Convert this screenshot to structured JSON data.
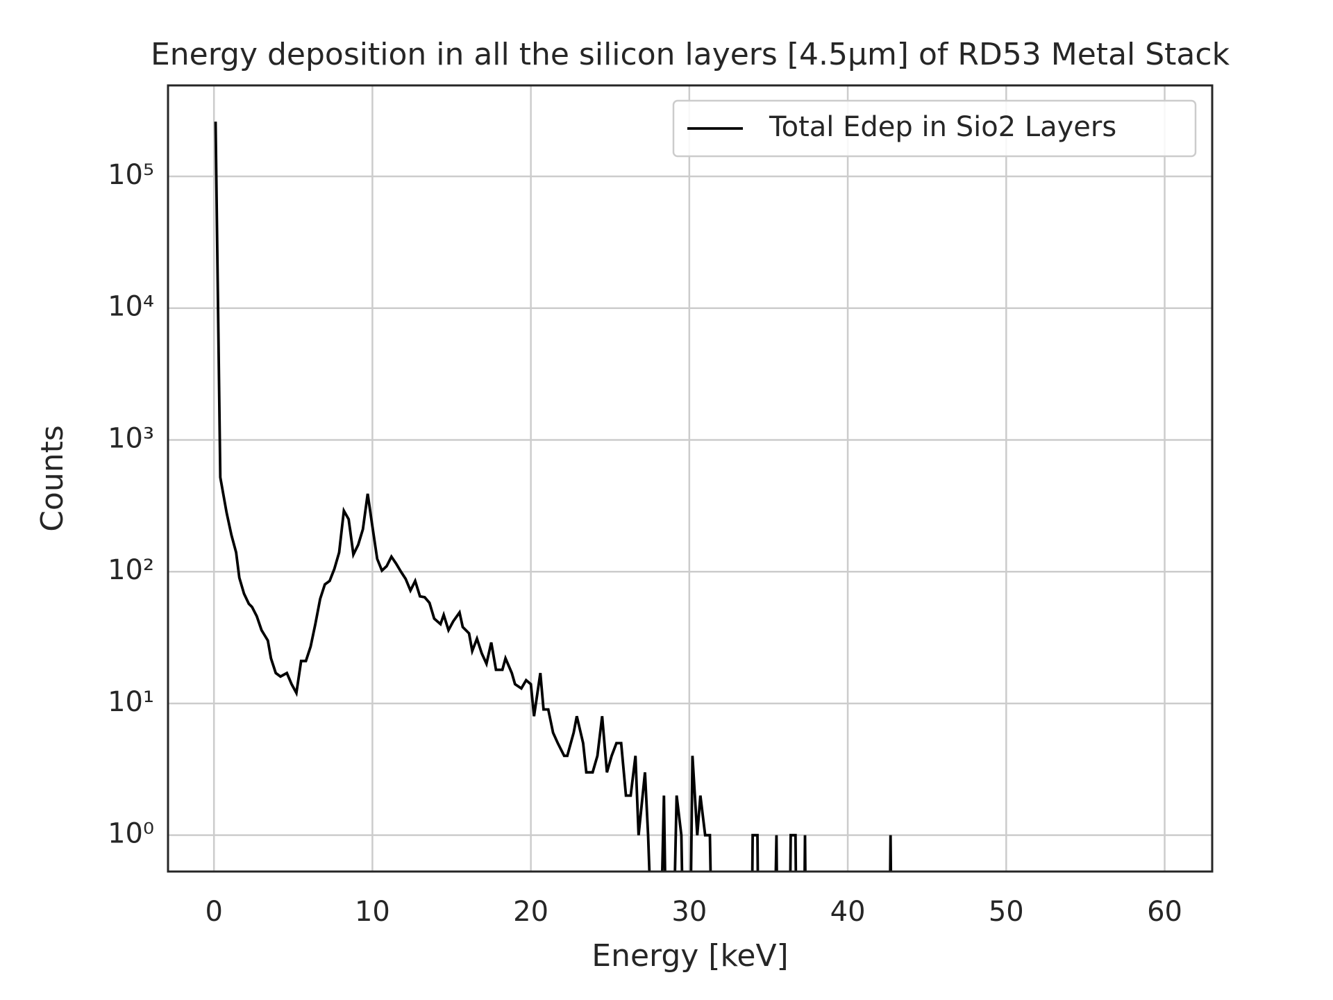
{
  "chart_data": {
    "type": "line",
    "title": "Energy deposition in all the silicon layers [4.5μm] of RD53 Metal Stack",
    "x_label": "Energy [keV]",
    "y_label": "Counts",
    "log_y": true,
    "grid": true,
    "legend": "upper right",
    "xlim": [
      -2.9,
      63
    ],
    "ylim": [
      0.53,
      490000
    ],
    "xticks": [
      0,
      10,
      20,
      30,
      40,
      50,
      60
    ],
    "yticks": [
      {
        "value": 1,
        "label": "10⁰"
      },
      {
        "value": 10,
        "label": "10¹"
      },
      {
        "value": 100,
        "label": "10²"
      },
      {
        "value": 1000,
        "label": "10³"
      },
      {
        "value": 10000,
        "label": "10⁴"
      },
      {
        "value": 100000,
        "label": "10⁵"
      }
    ],
    "x": [
      0.1,
      0.4,
      0.8,
      1.1,
      1.4,
      1.6,
      1.9,
      2.2,
      2.4,
      2.7,
      3.0,
      3.4,
      3.6,
      3.9,
      4.2,
      4.6,
      4.9,
      5.2,
      5.5,
      5.8,
      6.1,
      6.4,
      6.7,
      7.0,
      7.3,
      7.6,
      7.9,
      8.2,
      8.5,
      8.8,
      9.1,
      9.4,
      9.7,
      10.0,
      10.3,
      10.6,
      10.9,
      11.2,
      11.5,
      11.8,
      12.1,
      12.4,
      12.7,
      13.0,
      13.3,
      13.6,
      13.9,
      14.3,
      14.5,
      14.8,
      15.1,
      15.5,
      15.7,
      16.1,
      16.3,
      16.6,
      16.9,
      17.2,
      17.5,
      17.8,
      18.2,
      18.4,
      18.8,
      19.0,
      19.4,
      19.7,
      20.0,
      20.2,
      20.6,
      20.8,
      21.1,
      21.4,
      21.7,
      22.1,
      22.3,
      22.7,
      22.9,
      23.3,
      23.5,
      23.9,
      24.2,
      24.5,
      24.8,
      25.1,
      25.4,
      25.7,
      26.0,
      26.3,
      26.6,
      26.8,
      27.2,
      27.4,
      27.8,
      28.1,
      28.4,
      28.6,
      28.9,
      29.2,
      29.5,
      29.7,
      30.0,
      30.2,
      30.5,
      30.7,
      31.0,
      31.3,
      31.5,
      33.9,
      34.0,
      34.3,
      34.4,
      35.3,
      35.5,
      35.6,
      36.3,
      36.4,
      36.7,
      36.8,
      37.2,
      37.3,
      37.4,
      42.6,
      42.7,
      42.8
    ],
    "series": [
      {
        "name": "Total Edep in Sio2 Layers",
        "color": "#000000",
        "values": [
          260000,
          520,
          280,
          190,
          140,
          90,
          68,
          57,
          54,
          46,
          36,
          30,
          22,
          17,
          16,
          17,
          14,
          12,
          21,
          21,
          27,
          40,
          62,
          80,
          85,
          105,
          140,
          290,
          250,
          135,
          160,
          210,
          390,
          220,
          125,
          102,
          110,
          130,
          115,
          100,
          88,
          72,
          85,
          65,
          64,
          58,
          44,
          40,
          47,
          36,
          42,
          49,
          38,
          34,
          25,
          31,
          24,
          20,
          29,
          18,
          18,
          22,
          17,
          14,
          13,
          15,
          14,
          8,
          17,
          9,
          9,
          6,
          5,
          4,
          4,
          6,
          8,
          5,
          3,
          3,
          4,
          8,
          3,
          4,
          5,
          5,
          2,
          2,
          4,
          1,
          3,
          1,
          0,
          0,
          2,
          0,
          0,
          2,
          1,
          0,
          0,
          4,
          1,
          2,
          1,
          1,
          0,
          0,
          1,
          1,
          0,
          0,
          1,
          0,
          0,
          1,
          1,
          0,
          0,
          1,
          0,
          0,
          1,
          0
        ]
      }
    ]
  }
}
